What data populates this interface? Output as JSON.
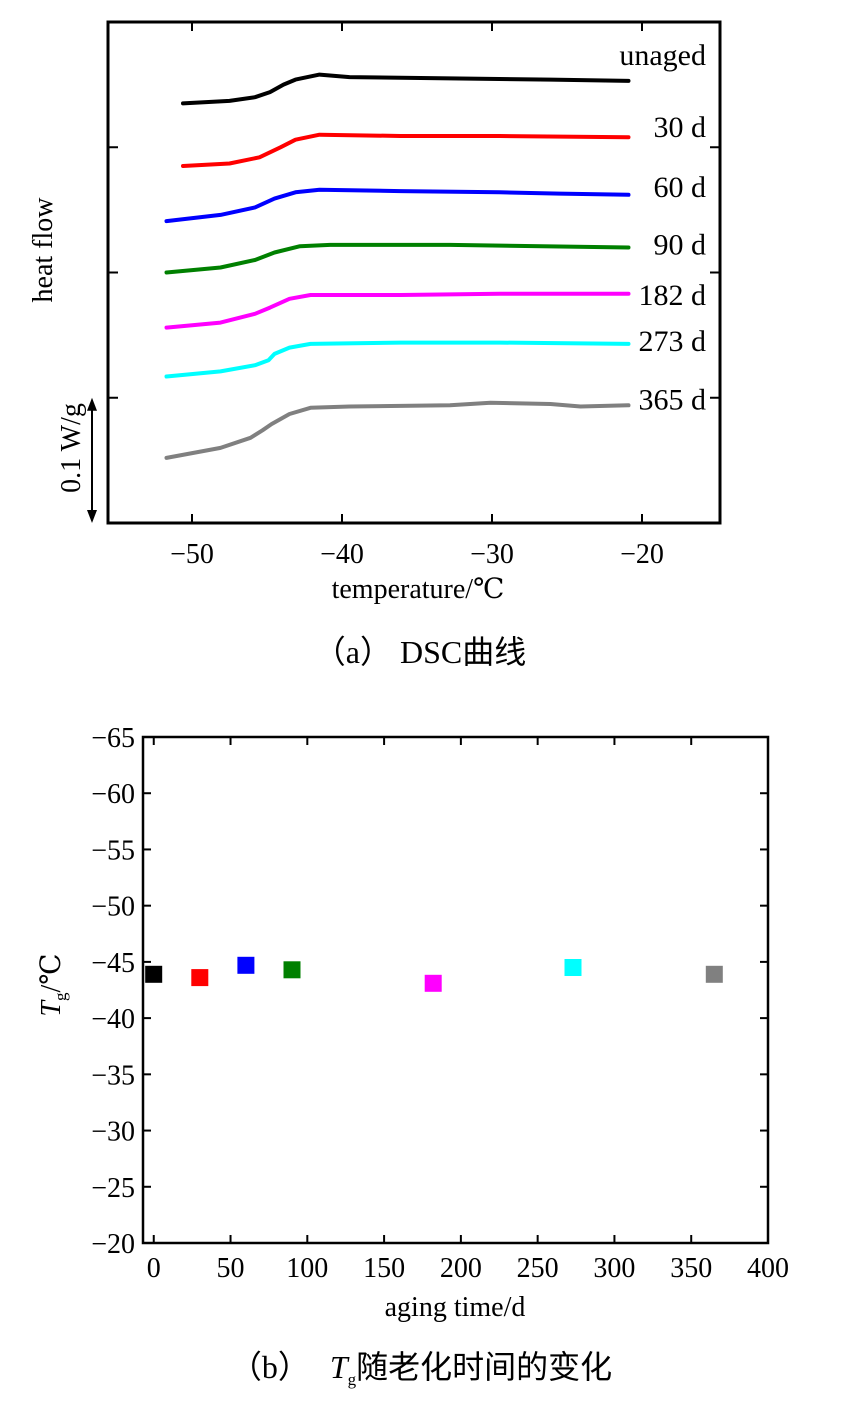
{
  "chart_data": [
    {
      "type": "line",
      "caption": "（a） DSC曲线",
      "xlabel": "temperature/℃",
      "ylabel": "heat flow",
      "xlim": [
        -55.6,
        -14.8
      ],
      "ylim": [
        0,
        0.4
      ],
      "xticks": [
        -50,
        -40,
        -30,
        -20
      ],
      "xtick_labels": [
        "−50",
        "−40",
        "−30",
        "−20"
      ],
      "yticks": [
        0.1,
        0.2,
        0.3
      ],
      "grid": false,
      "legend": "none",
      "scale_bar": {
        "label": "0.1 W/g",
        "value": 0.1
      },
      "series": [
        {
          "name": "unaged",
          "color": "#000000",
          "points": [
            [
              -50.6,
              0.335
            ],
            [
              -47.5,
              0.337
            ],
            [
              -45.8,
              0.34
            ],
            [
              -44.8,
              0.344
            ],
            [
              -43.9,
              0.35
            ],
            [
              -43.1,
              0.354
            ],
            [
              -41.5,
              0.358
            ],
            [
              -39.5,
              0.356
            ],
            [
              -32.8,
              0.355
            ],
            [
              -26.1,
              0.354
            ],
            [
              -20.9,
              0.353
            ]
          ]
        },
        {
          "name": "30 d",
          "color": "#ff0000",
          "points": [
            [
              -50.6,
              0.285
            ],
            [
              -47.5,
              0.287
            ],
            [
              -45.5,
              0.292
            ],
            [
              -44.1,
              0.3
            ],
            [
              -43.1,
              0.306
            ],
            [
              -41.5,
              0.31
            ],
            [
              -36.1,
              0.309
            ],
            [
              -29.5,
              0.309
            ],
            [
              -20.9,
              0.308
            ]
          ]
        },
        {
          "name": "60 d",
          "color": "#0000ff",
          "points": [
            [
              -51.7,
              0.241
            ],
            [
              -48.1,
              0.246
            ],
            [
              -45.8,
              0.252
            ],
            [
              -44.5,
              0.259
            ],
            [
              -43.1,
              0.264
            ],
            [
              -41.5,
              0.266
            ],
            [
              -36.1,
              0.265
            ],
            [
              -29.5,
              0.264
            ],
            [
              -25.5,
              0.263
            ],
            [
              -20.9,
              0.262
            ]
          ]
        },
        {
          "name": "90 d",
          "color": "#008000",
          "points": [
            [
              -51.7,
              0.2
            ],
            [
              -48.1,
              0.204
            ],
            [
              -45.8,
              0.21
            ],
            [
              -44.5,
              0.216
            ],
            [
              -42.8,
              0.221
            ],
            [
              -40.8,
              0.222
            ],
            [
              -32.8,
              0.222
            ],
            [
              -20.9,
              0.22
            ]
          ]
        },
        {
          "name": "182 d",
          "color": "#ff00ff",
          "points": [
            [
              -51.7,
              0.156
            ],
            [
              -48.1,
              0.16
            ],
            [
              -45.8,
              0.167
            ],
            [
              -44.8,
              0.172
            ],
            [
              -43.5,
              0.179
            ],
            [
              -42.1,
              0.182
            ],
            [
              -36.1,
              0.182
            ],
            [
              -29.5,
              0.183
            ],
            [
              -20.9,
              0.183
            ]
          ]
        },
        {
          "name": "273 d",
          "color": "#00ffff",
          "points": [
            [
              -51.7,
              0.117
            ],
            [
              -48.1,
              0.121
            ],
            [
              -45.8,
              0.126
            ],
            [
              -44.9,
              0.13
            ],
            [
              -44.5,
              0.135
            ],
            [
              -43.5,
              0.14
            ],
            [
              -42.1,
              0.143
            ],
            [
              -36.1,
              0.144
            ],
            [
              -29.5,
              0.144
            ],
            [
              -20.9,
              0.143
            ]
          ]
        },
        {
          "name": "365 d",
          "color": "#808080",
          "points": [
            [
              -51.7,
              0.052
            ],
            [
              -48.1,
              0.06
            ],
            [
              -46.1,
              0.068
            ],
            [
              -45.3,
              0.074
            ],
            [
              -44.7,
              0.079
            ],
            [
              -43.5,
              0.087
            ],
            [
              -42.1,
              0.092
            ],
            [
              -39.5,
              0.093
            ],
            [
              -32.8,
              0.094
            ],
            [
              -30.1,
              0.096
            ],
            [
              -26.1,
              0.095
            ],
            [
              -24.1,
              0.093
            ],
            [
              -20.9,
              0.094
            ]
          ]
        }
      ]
    },
    {
      "type": "scatter",
      "caption": {
        "label": "（b）",
        "symbol": "T",
        "subscript": "g",
        "text": "随老化时间的变化"
      },
      "xlabel": "aging time/d",
      "ylabel": {
        "symbol": "T",
        "subscript": "g",
        "unit": "/℃"
      },
      "xlim": [
        -7,
        400
      ],
      "ylim": [
        -65,
        -20
      ],
      "y_reversed": true,
      "xticks": [
        0,
        50,
        100,
        150,
        200,
        250,
        300,
        350,
        400
      ],
      "xtick_labels": [
        "0",
        "50",
        "100",
        "150",
        "200",
        "250",
        "300",
        "350",
        "400"
      ],
      "yticks": [
        -65,
        -60,
        -55,
        -50,
        -45,
        -40,
        -35,
        -30,
        -25,
        -20
      ],
      "ytick_labels": [
        "−65",
        "−60",
        "−55",
        "−50",
        "−45",
        "−40",
        "−35",
        "−30",
        "−25",
        "−20"
      ],
      "grid": false,
      "legend": "none",
      "x": [
        0,
        30,
        60,
        90,
        182,
        273,
        365
      ],
      "y": [
        -43.9,
        -43.6,
        -44.7,
        -44.3,
        -43.1,
        -44.5,
        -43.9
      ],
      "colors": [
        "#000000",
        "#ff0000",
        "#0000ff",
        "#008000",
        "#ff00ff",
        "#00ffff",
        "#808080"
      ]
    }
  ]
}
